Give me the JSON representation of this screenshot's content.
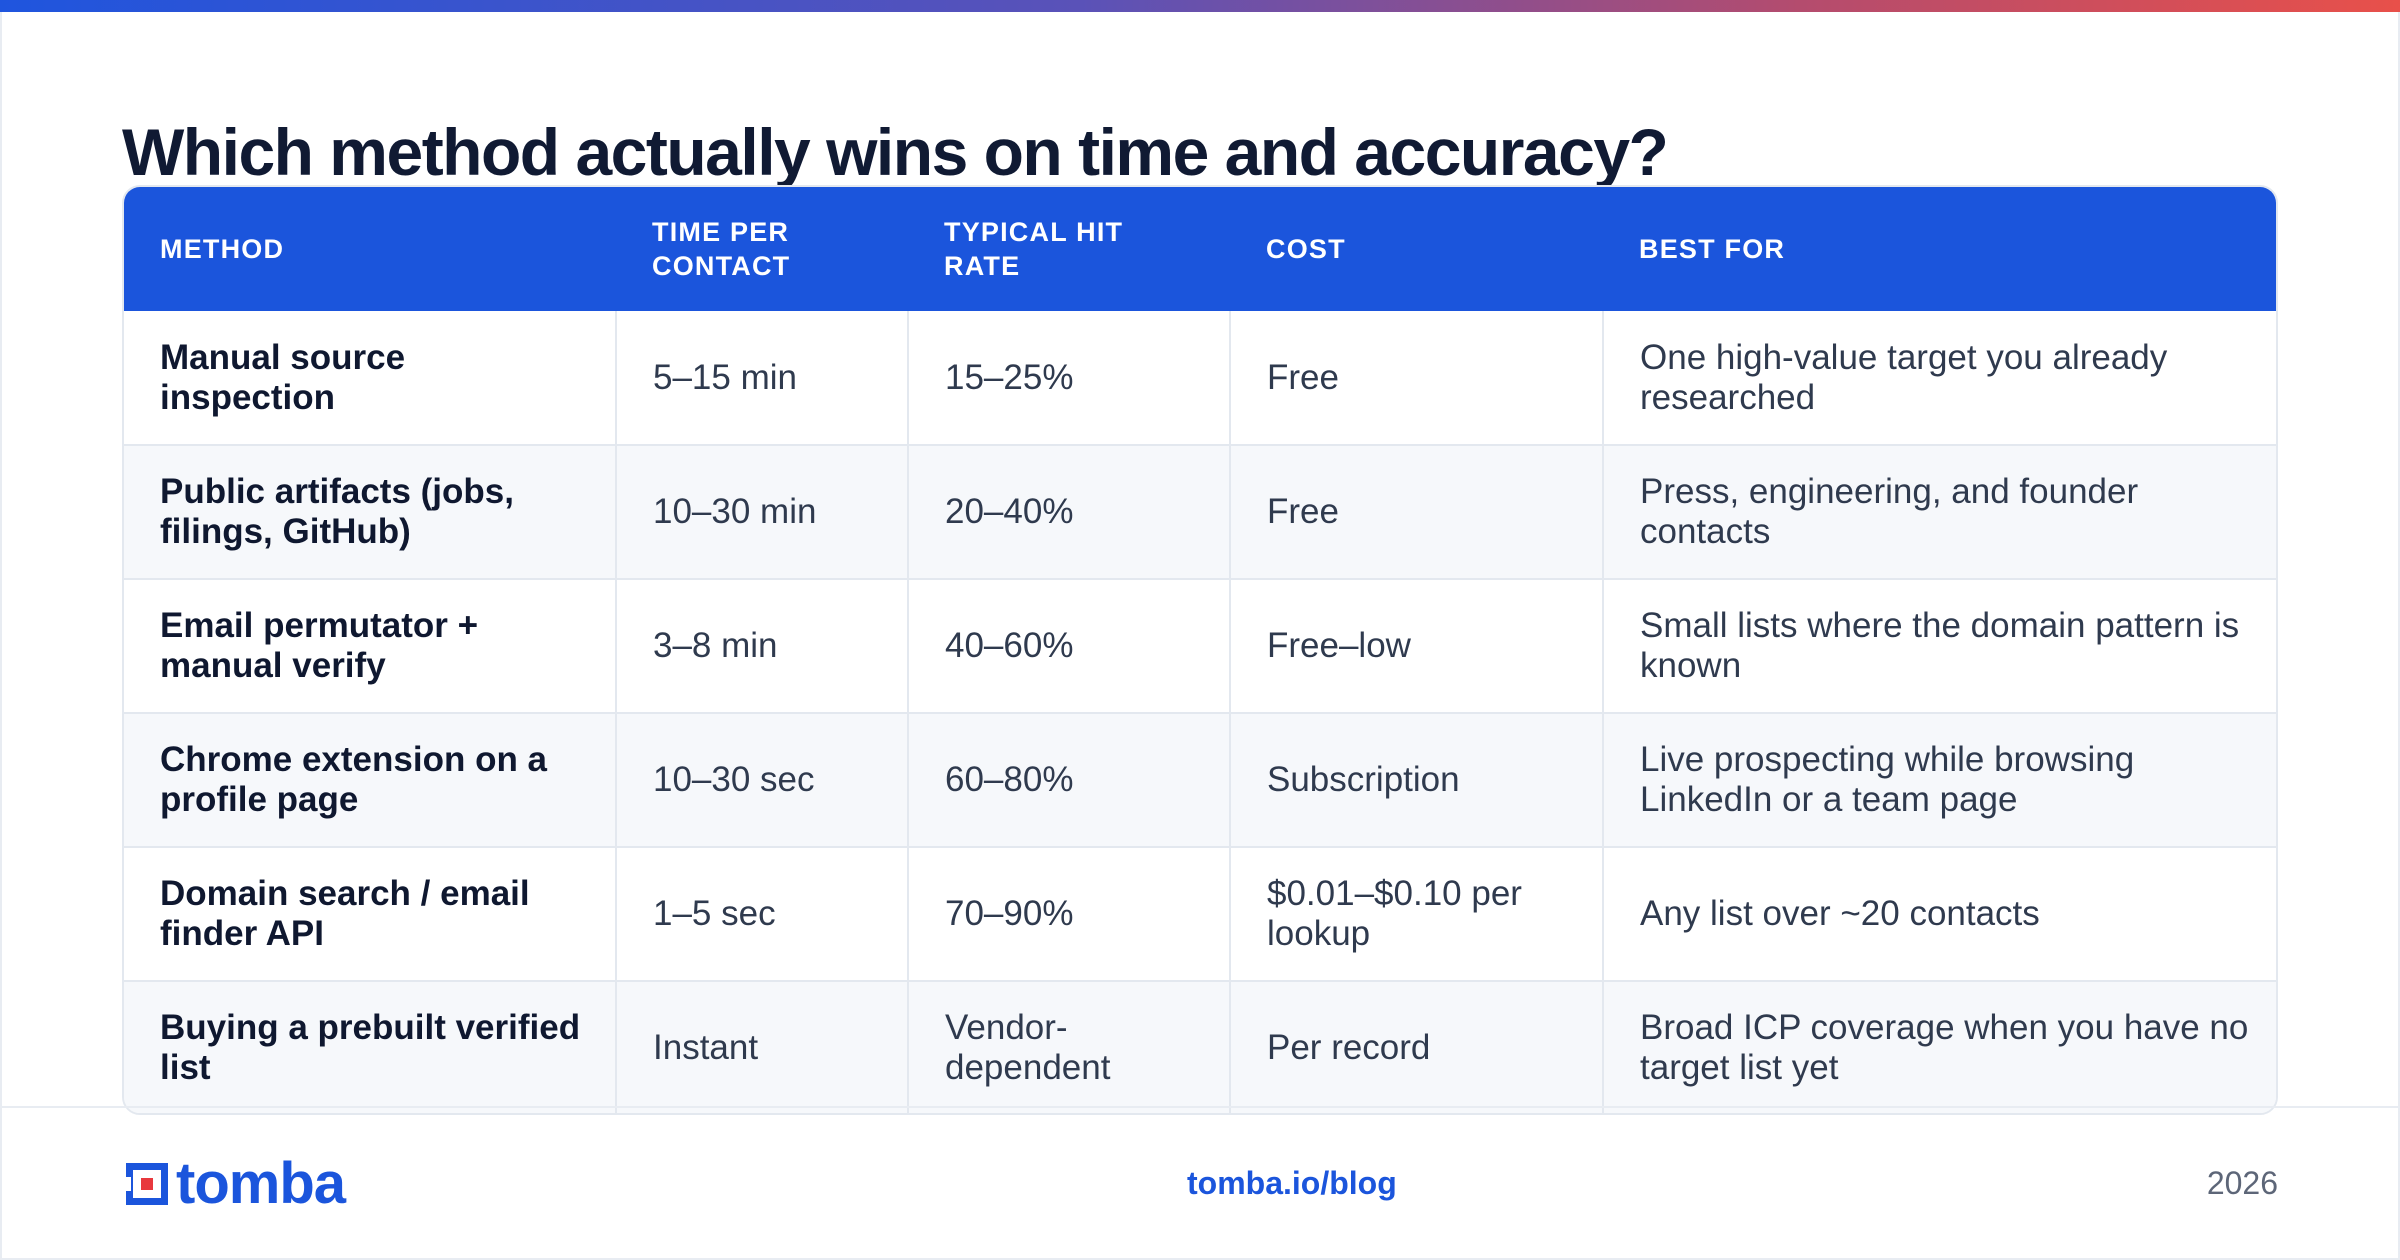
{
  "title": "Which method actually wins on time and accuracy?",
  "table": {
    "headers": [
      "METHOD",
      "TIME PER CONTACT",
      "TYPICAL HIT RATE",
      "COST",
      "BEST FOR"
    ],
    "rows": [
      [
        "Manual source inspection",
        "5–15 min",
        "15–25%",
        "Free",
        "One high-value target you already researched"
      ],
      [
        "Public artifacts (jobs, filings, GitHub)",
        "10–30 min",
        "20–40%",
        "Free",
        "Press, engineering, and founder contacts"
      ],
      [
        "Email permutator + manual verify",
        "3–8 min",
        "40–60%",
        "Free–low",
        "Small lists where the domain pattern is known"
      ],
      [
        "Chrome extension on a profile page",
        "10–30 sec",
        "60–80%",
        "Subscription",
        "Live prospecting while browsing LinkedIn or a team page"
      ],
      [
        "Domain search / email finder API",
        "1–5 sec",
        "70–90%",
        "$0.01–$0.10 per lookup",
        "Any list over ~20 contacts"
      ],
      [
        "Buying a prebuilt verified list",
        "Instant",
        "Vendor-dependent",
        "Per record",
        "Broad ICP coverage when you have no target list yet"
      ]
    ]
  },
  "footer": {
    "logo_text": "tomba",
    "link": "tomba.io/blog",
    "year": "2026"
  },
  "colors": {
    "accent": "#1b55dc",
    "logo_accent": "#e8383d",
    "gradient_start": "#1f55de",
    "gradient_end": "#e8504a"
  }
}
